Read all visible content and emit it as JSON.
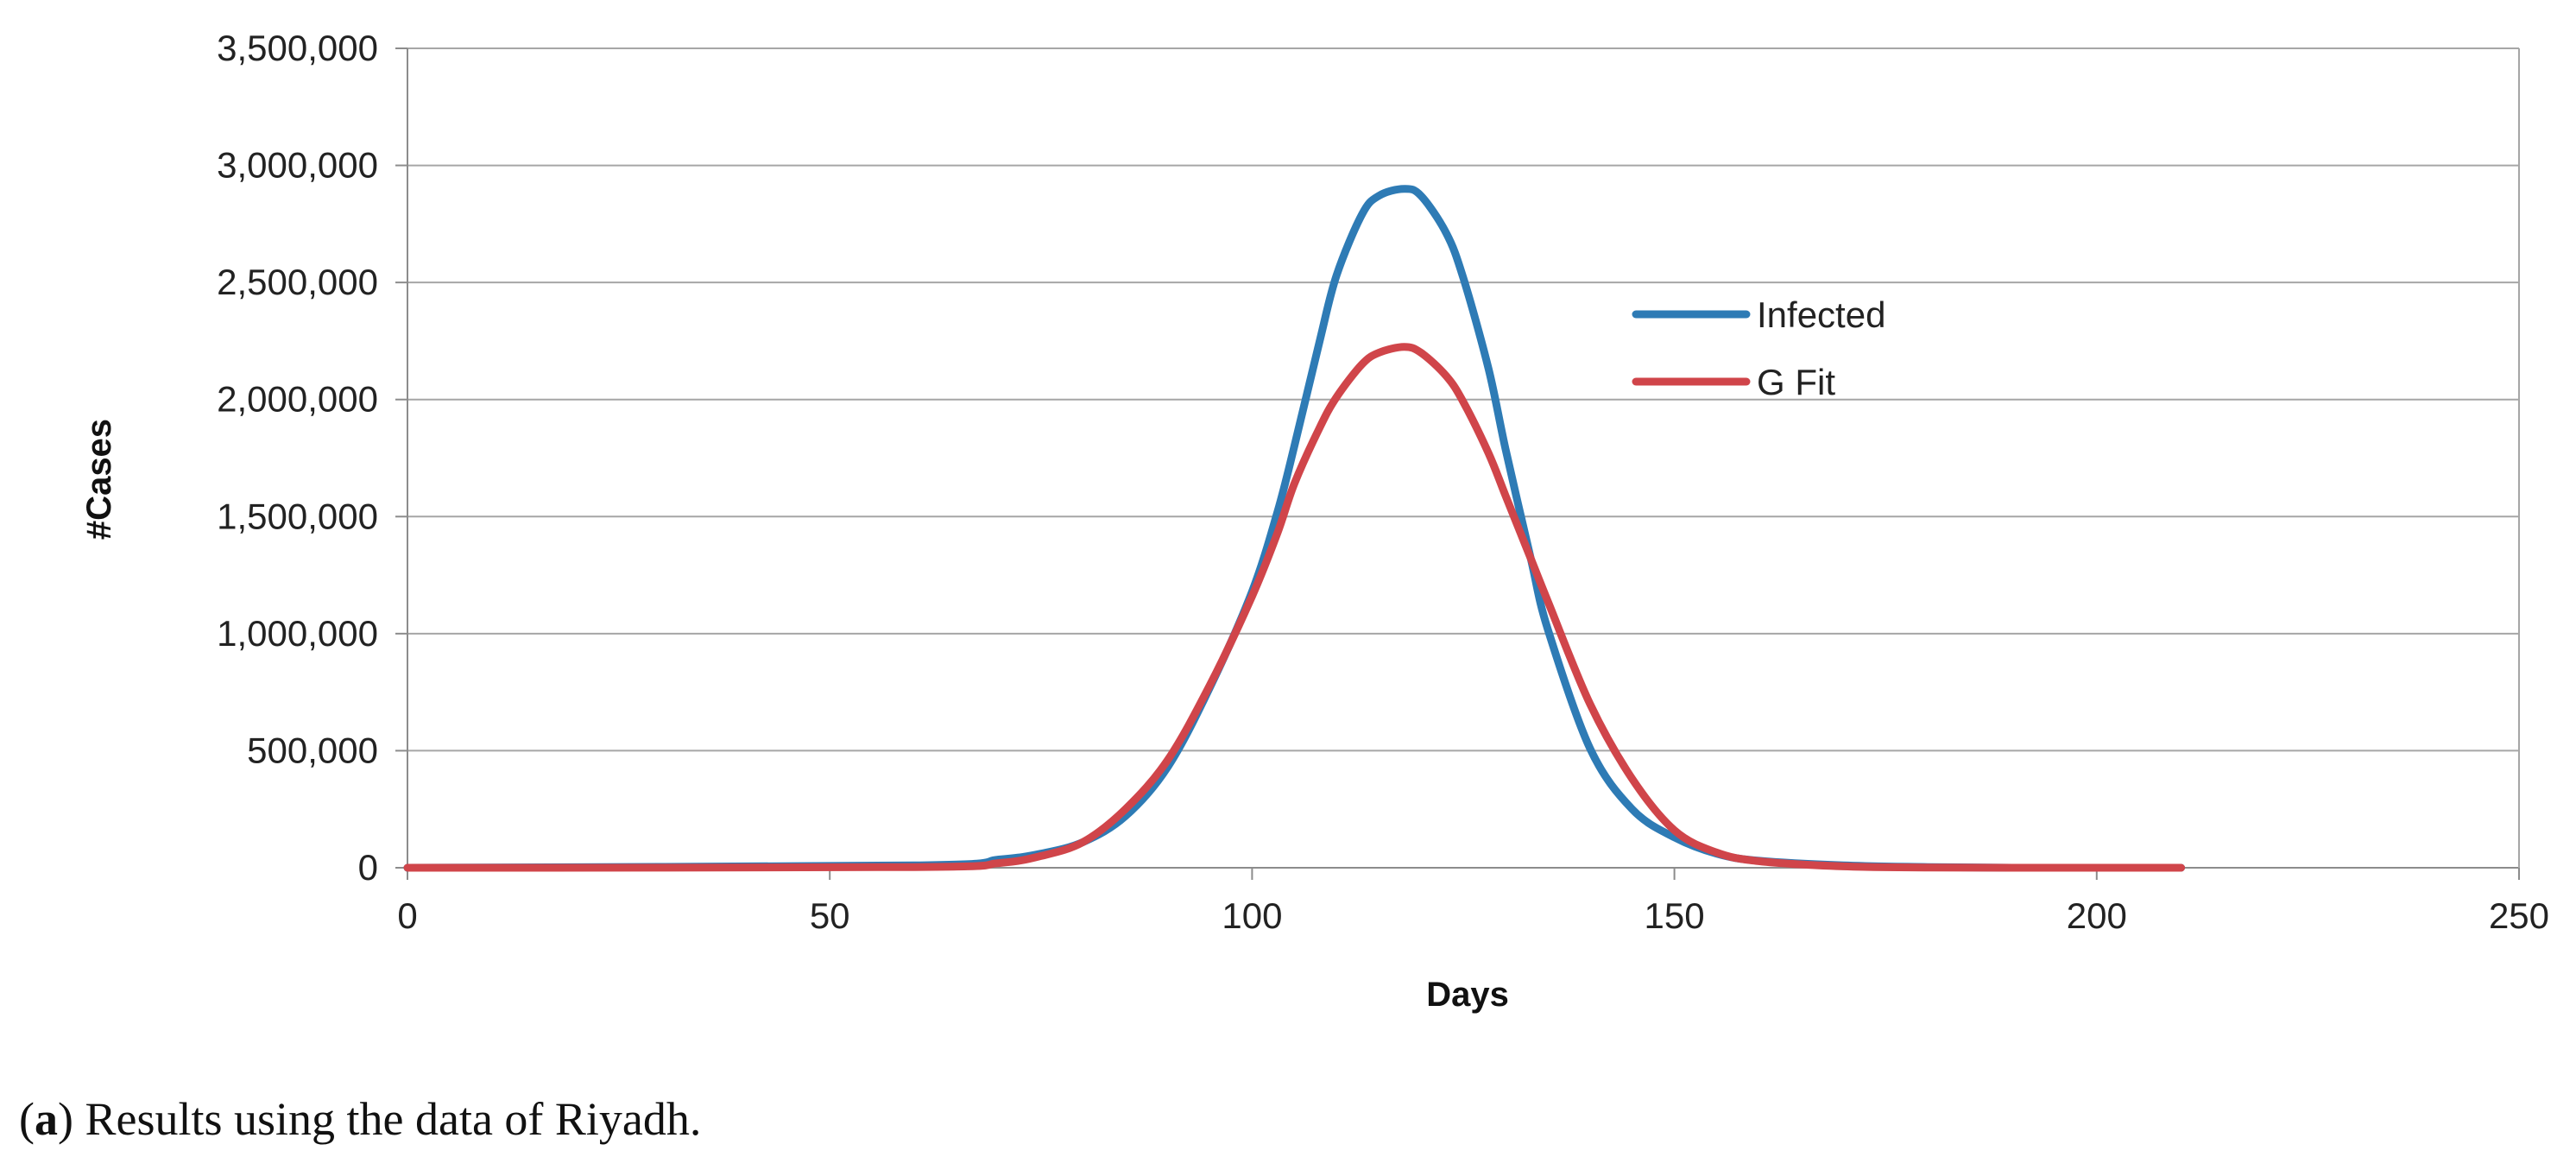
{
  "chart_data": {
    "type": "line",
    "title": "",
    "xlabel": "Days",
    "ylabel": "#Cases",
    "xlim": [
      0,
      250
    ],
    "ylim": [
      0,
      3500000
    ],
    "x_ticks": [
      0,
      50,
      100,
      150,
      200,
      250
    ],
    "x_tick_labels": [
      "0",
      "50",
      "100",
      "150",
      "200",
      "250"
    ],
    "y_ticks": [
      0,
      500000,
      1000000,
      1500000,
      2000000,
      2500000,
      3000000,
      3500000
    ],
    "y_tick_labels": [
      "0",
      "500,000",
      "1,000,000",
      "1,500,000",
      "2,000,000",
      "2,500,000",
      "3,000,000",
      "3,500,000"
    ],
    "grid": "horizontal",
    "legend_position": "upper-right",
    "x": [
      0,
      60,
      70,
      75,
      80,
      85,
      90,
      95,
      100,
      103,
      105,
      108,
      110,
      113,
      115,
      118,
      120,
      123,
      125,
      128,
      130,
      133,
      135,
      140,
      145,
      150,
      155,
      160,
      170,
      180,
      190,
      200,
      210
    ],
    "series": [
      {
        "name": "Infected",
        "color": "#2E7BB5",
        "values": [
          0,
          10000,
          35000,
          60000,
          110000,
          220000,
          430000,
          770000,
          1180000,
          1520000,
          1800000,
          2250000,
          2530000,
          2790000,
          2870000,
          2900000,
          2870000,
          2710000,
          2520000,
          2130000,
          1790000,
          1320000,
          1020000,
          510000,
          250000,
          130000,
          60000,
          30000,
          10000,
          3000,
          0,
          0,
          0
        ]
      },
      {
        "name": "G Fit",
        "color": "#D0454A",
        "values": [
          0,
          3000,
          20000,
          50000,
          110000,
          250000,
          460000,
          780000,
          1160000,
          1430000,
          1640000,
          1880000,
          2010000,
          2150000,
          2200000,
          2225000,
          2200000,
          2100000,
          1990000,
          1770000,
          1590000,
          1320000,
          1140000,
          700000,
          380000,
          160000,
          65000,
          28000,
          6000,
          1000,
          0,
          0,
          0
        ]
      }
    ]
  },
  "caption": {
    "label": "a",
    "text": ") Results using the data of Riyadh."
  }
}
